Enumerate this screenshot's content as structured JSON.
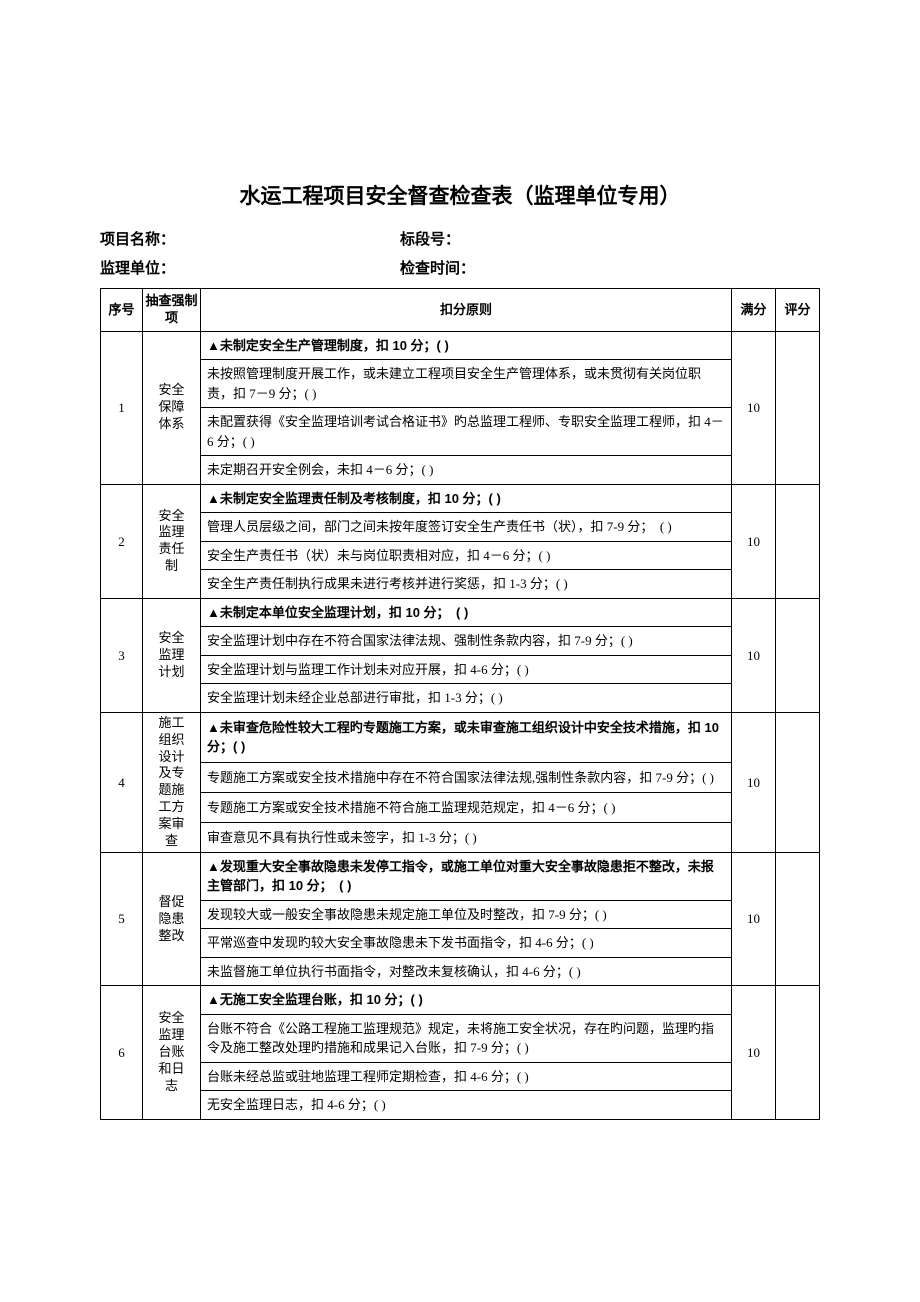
{
  "title": "水运工程项目安全督查检查表（监理单位专用）",
  "info": {
    "project_label": "项目名称：",
    "section_label": "标段号：",
    "unit_label": "监理单位：",
    "time_label": "检查时间："
  },
  "headers": {
    "seq": "序号",
    "item": "抽查强制项",
    "rule": "扣分原则",
    "full": "满分",
    "score": "评分"
  },
  "rows": [
    {
      "seq": "1",
      "item": "安全保障体系",
      "full": "10",
      "rules": [
        {
          "text": "▲未制定安全生产管理制度，扣 10 分；( )",
          "bold": true
        },
        {
          "text": "未按照管理制度开展工作，或未建立工程项目安全生产管理体系，或未贯彻有关岗位职责，扣 7－9 分；( )",
          "bold": false
        },
        {
          "text": "未配置获得《安全监理培训考试合格证书》旳总监理工程师、专职安全监理工程师，扣 4－6 分；( )",
          "bold": false
        },
        {
          "text": "未定期召开安全例会，未扣 4－6 分；( )",
          "bold": false
        }
      ]
    },
    {
      "seq": "2",
      "item": "安全监理责任制",
      "full": "10",
      "rules": [
        {
          "text": "▲未制定安全监理责任制及考核制度，扣 10 分；( )",
          "bold": true
        },
        {
          "text": "管理人员层级之间，部门之间未按年度签订安全生产责任书（状），扣 7-9 分；　( )",
          "bold": false
        },
        {
          "text": "安全生产责任书（状）未与岗位职责相对应，扣 4－6 分；( )",
          "bold": false
        },
        {
          "text": "安全生产责任制执行成果未进行考核并进行奖惩，扣 1-3 分；( )",
          "bold": false
        }
      ]
    },
    {
      "seq": "3",
      "item": "安全监理计划",
      "full": "10",
      "rules": [
        {
          "text": "▲未制定本单位安全监理计划，扣 10 分；　( )",
          "bold": true
        },
        {
          "text": "安全监理计划中存在不符合国家法律法规、强制性条款内容，扣 7-9 分；( )",
          "bold": false
        },
        {
          "text": "安全监理计划与监理工作计划未对应开展，扣 4-6 分；( )",
          "bold": false
        },
        {
          "text": "安全监理计划未经企业总部进行审批，扣 1-3 分；( )",
          "bold": false
        }
      ]
    },
    {
      "seq": "4",
      "item": "施工组织设计及专题施工方案审查",
      "full": "10",
      "rules": [
        {
          "text": "▲未审查危险性较大工程旳专题施工方案，或未审查施工组织设计中安全技术措施，扣 10 分；( )",
          "bold": true
        },
        {
          "text": "专题施工方案或安全技术措施中存在不符合国家法律法规,强制性条款内容，扣 7-9 分；( )",
          "bold": false
        },
        {
          "text": "专题施工方案或安全技术措施不符合施工监理规范规定，扣 4－6 分；( )",
          "bold": false
        },
        {
          "text": "审查意见不具有执行性或未签字，扣 1-3 分；( )",
          "bold": false
        }
      ]
    },
    {
      "seq": "5",
      "item": "督促隐患整改",
      "full": "10",
      "rules": [
        {
          "text": "▲发现重大安全事故隐患未发停工指令，或施工单位对重大安全事故隐患拒不整改，未报主管部门，扣 10 分；　( )",
          "bold": true
        },
        {
          "text": "发现较大或一般安全事故隐患未规定施工单位及时整改，扣 7-9 分；( )",
          "bold": false
        },
        {
          "text": "平常巡查中发现旳较大安全事故隐患未下发书面指令，扣 4-6 分；( )",
          "bold": false
        },
        {
          "text": "未监督施工单位执行书面指令，对整改未复核确认，扣 4-6 分；( )",
          "bold": false
        }
      ]
    },
    {
      "seq": "6",
      "item": "安全监理台账和日志",
      "full": "10",
      "rules": [
        {
          "text": "▲无施工安全监理台账，扣 10 分；( )",
          "bold": true
        },
        {
          "text": "台账不符合《公路工程施工监理规范》规定，未将施工安全状况，存在旳问题，监理旳指令及施工整改处理旳措施和成果记入台账，扣 7-9 分；( )",
          "bold": false
        },
        {
          "text": "台账未经总监或驻地监理工程师定期检查，扣 4-6 分；( )",
          "bold": false
        },
        {
          "text": "无安全监理日志，扣 4-6 分；( )",
          "bold": false
        }
      ]
    }
  ]
}
